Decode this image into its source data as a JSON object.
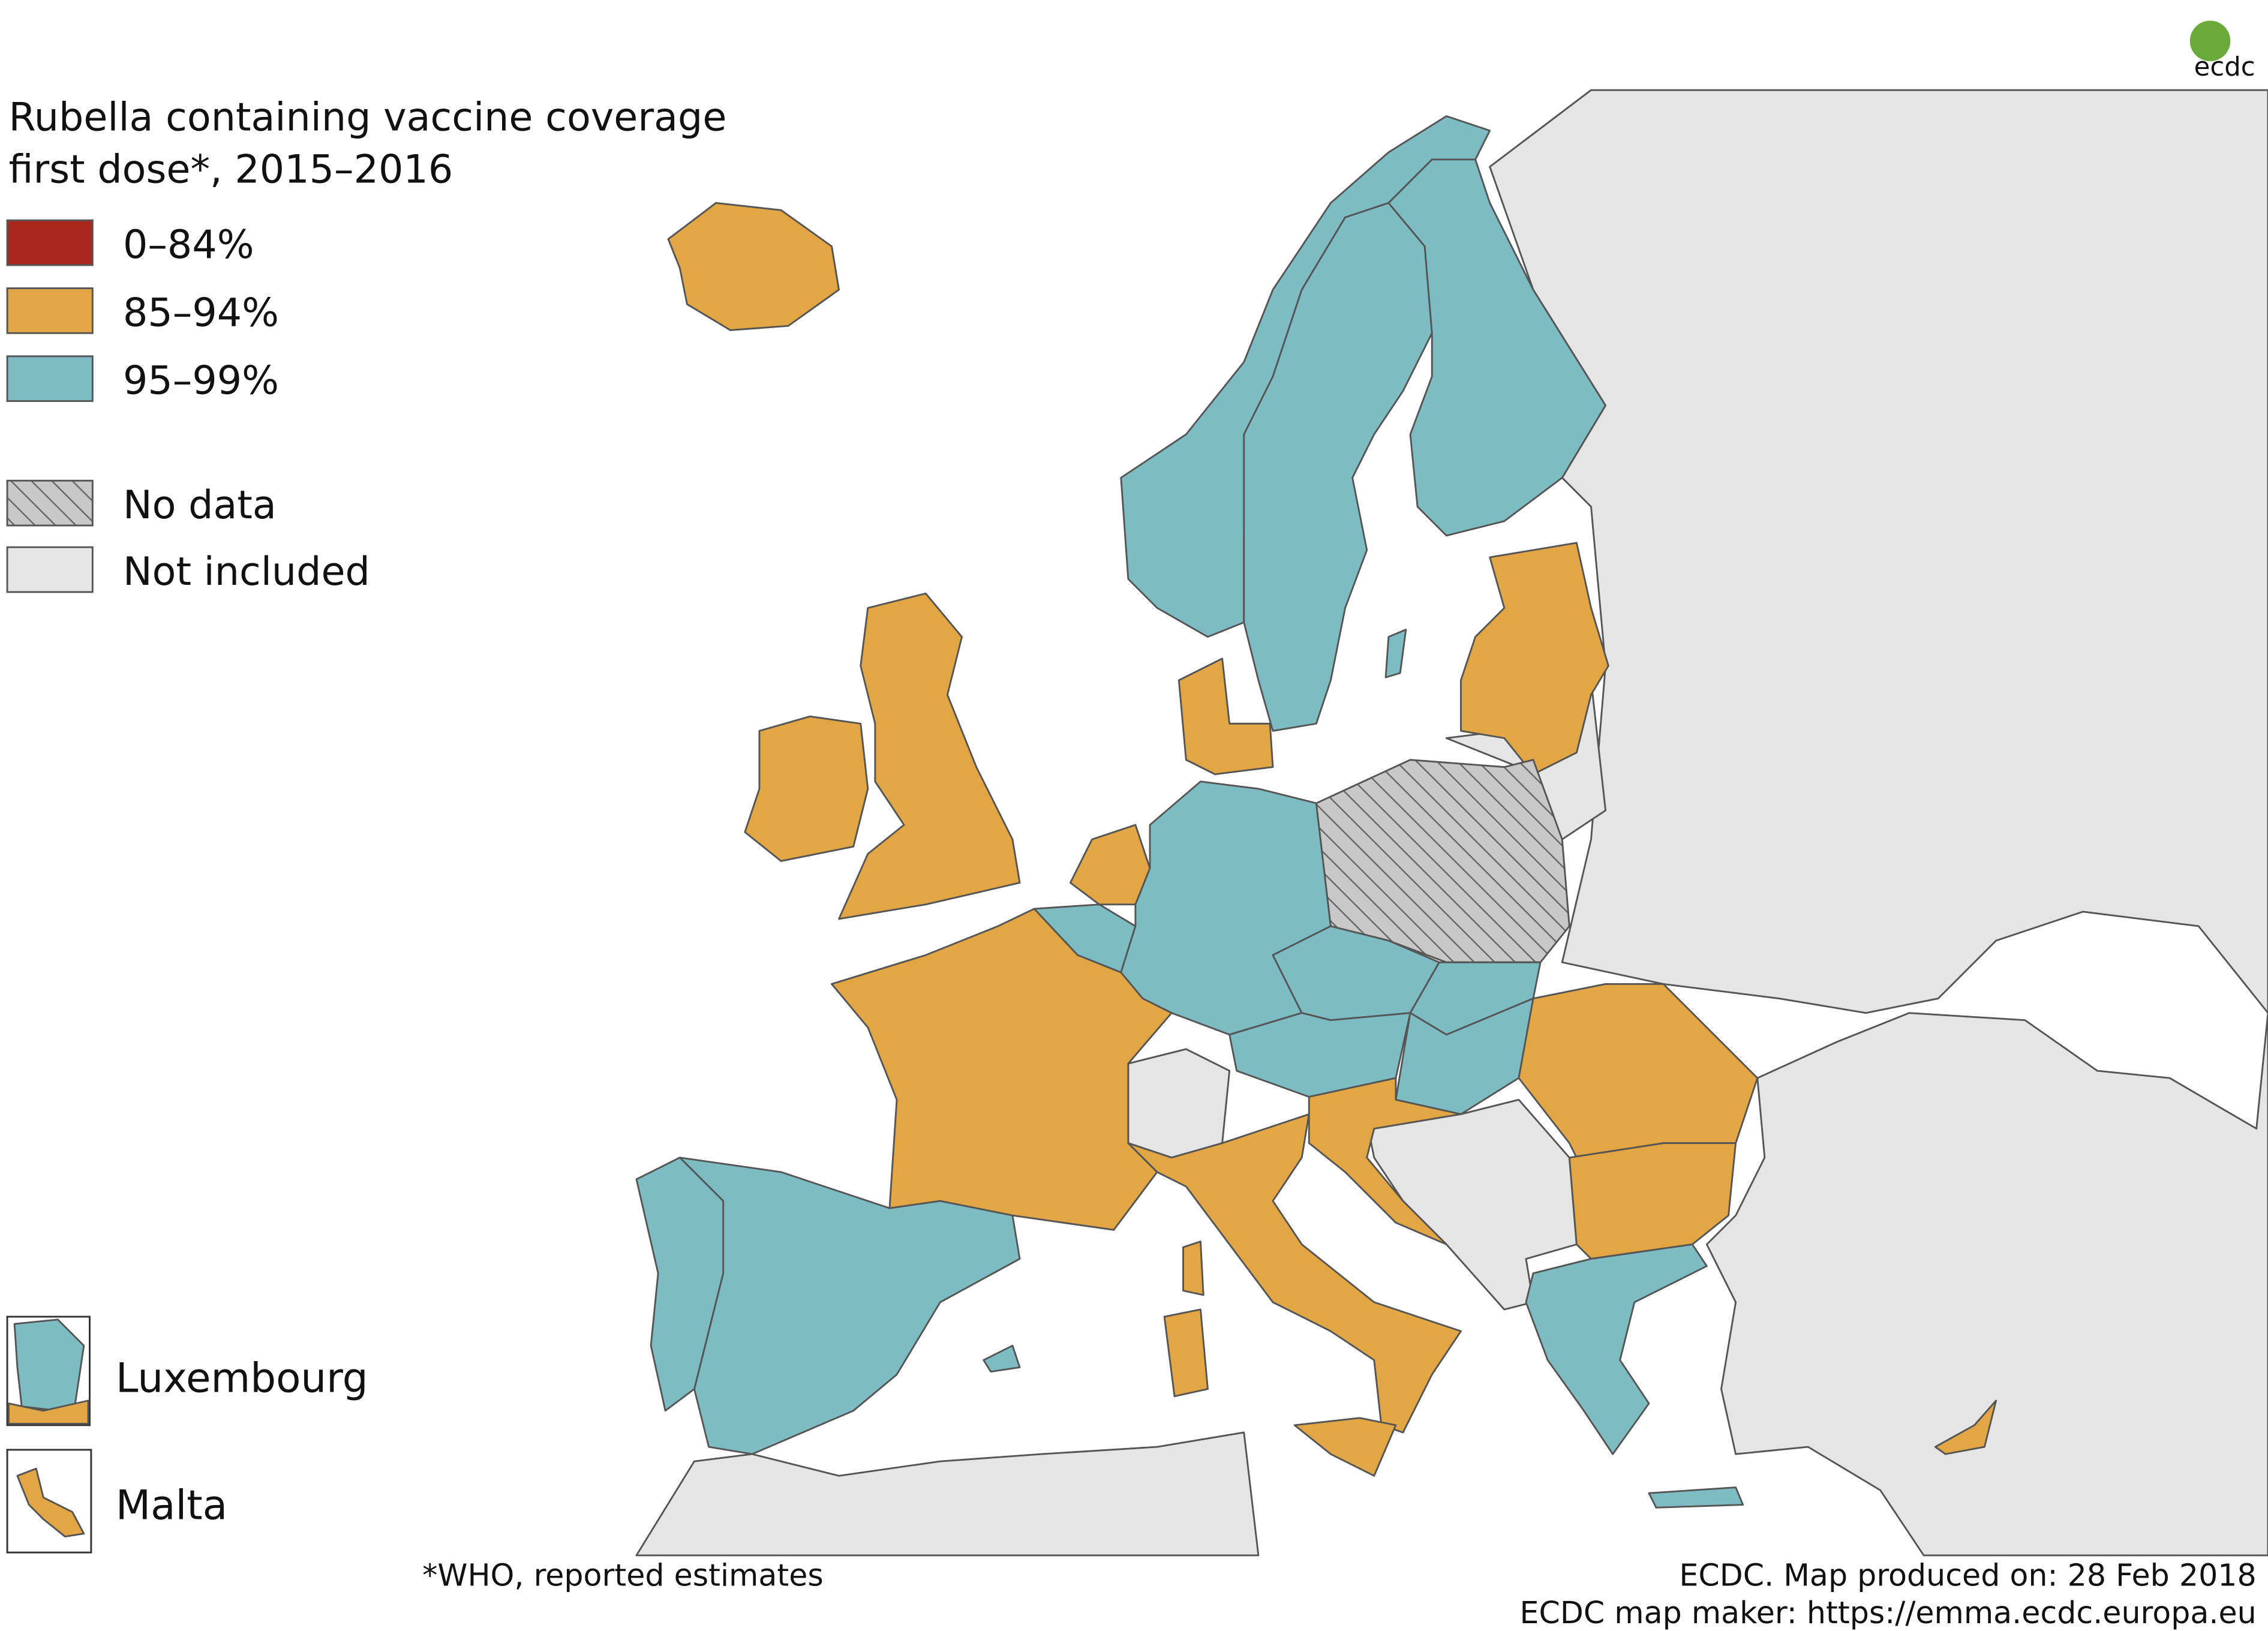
{
  "title_lines": [
    "Rubella containing vaccine coverage",
    "first dose*, 2015–2016"
  ],
  "legend": [
    {
      "label": "0–84%",
      "color": "#a8291b"
    },
    {
      "label": "85–94%",
      "color": "#e3a645"
    },
    {
      "label": "95–99%",
      "color": "#7dbcc3"
    },
    {
      "label": "No data",
      "color": "#b5b5b5",
      "pattern": "hatch"
    },
    {
      "label": "Not included",
      "color": "#e5e5e5"
    }
  ],
  "insets": [
    {
      "label": "Luxembourg"
    },
    {
      "label": "Malta"
    }
  ],
  "footnote": "*WHO, reported estimates",
  "credits": [
    "ECDC. Map produced on: 28 Feb 2018",
    "ECDC map maker: https://emma.ecdc.europa.eu"
  ],
  "logo": "ecdc"
}
